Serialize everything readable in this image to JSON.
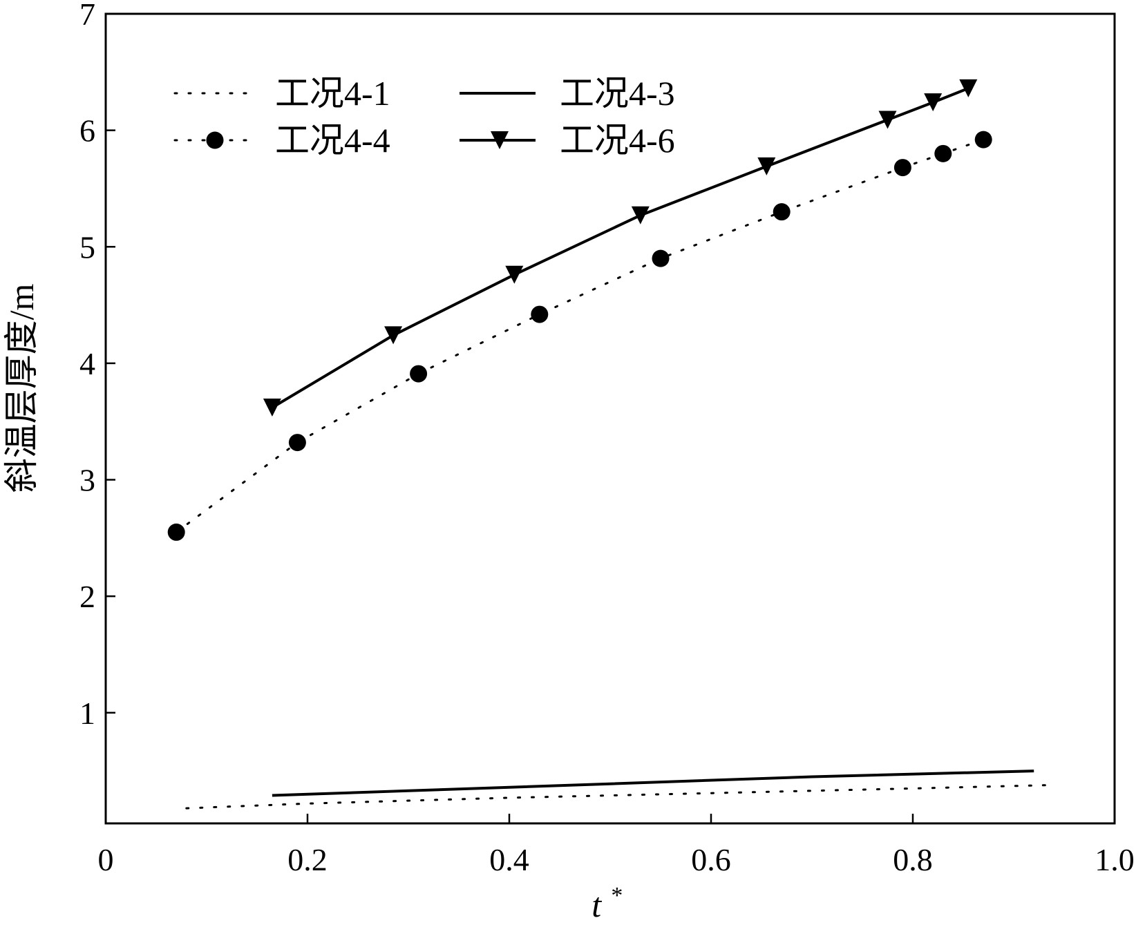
{
  "chart_data": {
    "type": "line",
    "title": "",
    "xlabel": "t",
    "xlabel_superscript": "*",
    "ylabel": "斜温层厚度/m",
    "xlim": [
      0,
      1.0
    ],
    "ylim": [
      0.05,
      7
    ],
    "x_ticks": [
      0,
      0.2,
      0.4,
      0.6,
      0.8,
      1.0
    ],
    "x_tick_labels": [
      "0",
      "0.2",
      "0.4",
      "0.6",
      "0.8",
      "1.0"
    ],
    "y_ticks": [
      1,
      2,
      3,
      4,
      5,
      6,
      7
    ],
    "y_tick_labels": [
      "1",
      "2",
      "3",
      "4",
      "5",
      "6",
      "7"
    ],
    "grid": false,
    "legend_position": "top-left",
    "series": [
      {
        "name": "工况4-1",
        "line": "dotted",
        "marker": "none",
        "x": [
          0.08,
          0.2,
          0.4,
          0.6,
          0.8,
          0.94
        ],
        "y": [
          0.18,
          0.22,
          0.27,
          0.31,
          0.35,
          0.38
        ]
      },
      {
        "name": "工况4-3",
        "line": "solid",
        "marker": "none",
        "x": [
          0.165,
          0.3,
          0.5,
          0.7,
          0.92
        ],
        "y": [
          0.29,
          0.33,
          0.39,
          0.45,
          0.5
        ]
      },
      {
        "name": "工况4-4",
        "line": "dotted",
        "marker": "circle",
        "x": [
          0.07,
          0.19,
          0.31,
          0.43,
          0.55,
          0.67,
          0.79,
          0.83,
          0.87
        ],
        "y": [
          2.55,
          3.32,
          3.91,
          4.42,
          4.9,
          5.3,
          5.68,
          5.8,
          5.92
        ]
      },
      {
        "name": "工况4-6",
        "line": "solid",
        "marker": "triangle-down",
        "x": [
          0.165,
          0.285,
          0.405,
          0.53,
          0.655,
          0.775,
          0.82,
          0.855
        ],
        "y": [
          3.62,
          4.24,
          4.76,
          5.27,
          5.69,
          6.09,
          6.24,
          6.36
        ]
      }
    ]
  }
}
